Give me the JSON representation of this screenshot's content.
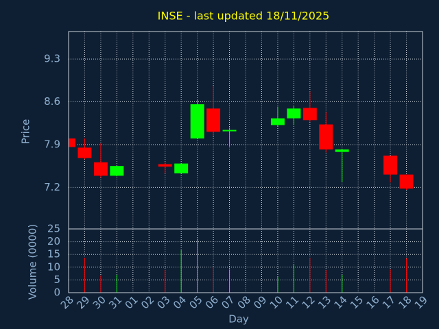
{
  "chart_data": {
    "type": "candlestick",
    "title": "INSE - last updated 18/11/2025",
    "xlabel": "Day",
    "ylabel": "Price",
    "y2label": "Volume (0000)",
    "categories": [
      "28",
      "29",
      "30",
      "31",
      "01",
      "02",
      "03",
      "04",
      "05",
      "06",
      "07",
      "08",
      "09",
      "10",
      "11",
      "12",
      "13",
      "14",
      "15",
      "16",
      "17",
      "18",
      "19"
    ],
    "open": [
      8.0,
      7.85,
      7.61,
      7.39,
      null,
      null,
      7.58,
      7.43,
      8.0,
      8.49,
      8.12,
      null,
      null,
      8.22,
      8.33,
      8.5,
      8.23,
      7.78,
      null,
      null,
      7.72,
      7.41,
      null
    ],
    "high": [
      8.0,
      8.0,
      7.92,
      7.55,
      null,
      null,
      7.61,
      7.59,
      8.64,
      8.86,
      8.18,
      null,
      null,
      8.52,
      8.54,
      8.77,
      8.43,
      7.82,
      null,
      null,
      7.72,
      7.41,
      null
    ],
    "low": [
      7.86,
      7.66,
      7.36,
      7.38,
      null,
      null,
      7.43,
      7.43,
      8.0,
      8.04,
      7.87,
      null,
      null,
      8.2,
      8.22,
      8.27,
      7.77,
      7.29,
      null,
      null,
      7.28,
      7.16,
      null
    ],
    "close": [
      7.86,
      7.68,
      7.39,
      7.55,
      null,
      null,
      7.54,
      7.59,
      8.56,
      8.11,
      8.14,
      null,
      null,
      8.33,
      8.49,
      8.3,
      7.82,
      7.82,
      null,
      null,
      7.41,
      7.18,
      null
    ],
    "volume": [
      null,
      13.7,
      6.7,
      7,
      null,
      null,
      8.9,
      16.7,
      21.2,
      10,
      9.1,
      null,
      null,
      6.2,
      11,
      13.7,
      8.9,
      7,
      null,
      null,
      9.1,
      13.5,
      null
    ],
    "ylim": [
      6.52,
      9.75
    ],
    "yticks": [
      7.2,
      7.9,
      8.6,
      9.3
    ],
    "y2lim": [
      0,
      25
    ],
    "y2ticks": [
      0,
      5,
      10,
      15,
      20,
      25
    ],
    "up_color": "#00ff00",
    "down_color": "#ff0000",
    "grid": true
  }
}
